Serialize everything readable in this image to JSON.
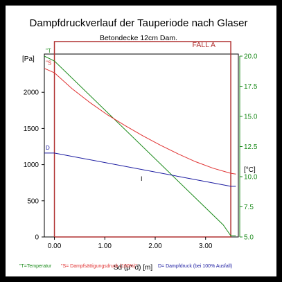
{
  "chart_data": {
    "type": "line",
    "title": "Dampfdruckverlauf der Tauperiode nach Glaser",
    "subtitle": "Betondecke 12cm Dam.",
    "case_label": "FALL A",
    "xlabel": "Sd (µ* d) [m]",
    "ylabel_left": "[Pa]",
    "ylabel_right": "[°C]",
    "xlim": [
      -0.2,
      3.65
    ],
    "ylim_left": [
      0,
      2500
    ],
    "ylim_right": [
      5.0,
      20.0
    ],
    "x_ticks": [
      "0.00",
      "1.00",
      "2.00",
      "3.00"
    ],
    "y_ticks_left": [
      "0",
      "500",
      "1000",
      "1500",
      "2000"
    ],
    "y_ticks_right": [
      "5.0",
      "7.5",
      "10.0",
      "12.5",
      "15.0",
      "17.5",
      "20.0"
    ],
    "boundary_x": [
      0.0,
      3.5
    ],
    "series": [
      {
        "key": "T",
        "axis": "right",
        "color": "#1a8a1a",
        "marker": "\"T",
        "x": [
          -0.2,
          0.0,
          3.35,
          3.5,
          3.6
        ],
        "y": [
          20.0,
          19.6,
          6.0,
          5.1,
          5.1
        ]
      },
      {
        "key": "S",
        "axis": "left",
        "color": "#e03030",
        "marker": "\"S",
        "x": [
          -0.2,
          0.0,
          0.35,
          0.7,
          1.05,
          1.4,
          1.75,
          2.1,
          2.45,
          2.8,
          3.15,
          3.5,
          3.6
        ],
        "y": [
          2330,
          2270,
          2050,
          1860,
          1690,
          1540,
          1400,
          1270,
          1150,
          1040,
          950,
          880,
          870
        ]
      },
      {
        "key": "D",
        "axis": "left",
        "color": "#1a1aa0",
        "marker": "D",
        "x": [
          -0.2,
          0.0,
          3.5,
          3.6
        ],
        "y": [
          1160,
          1160,
          700,
          700
        ]
      }
    ],
    "annotations": [
      "I"
    ],
    "legend": [
      {
        "text": "\"T=Temperatur",
        "color": "#1a8a1a"
      },
      {
        "text": "\"S= Dampfsättigungsdruck (100%)\"",
        "color": "#e03030"
      },
      {
        "text": "D= Dampfdruck (bei 100% Ausfall)",
        "color": "#1a1aa0"
      }
    ]
  }
}
